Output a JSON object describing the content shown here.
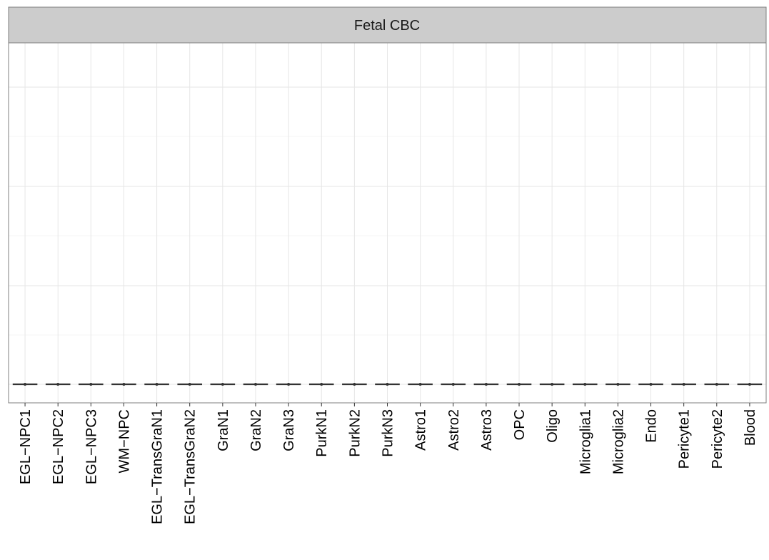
{
  "chart_data": {
    "type": "box",
    "panel_title": "Fetal CBC",
    "categories": [
      "EGL−NPC1",
      "EGL−NPC2",
      "EGL−NPC3",
      "WM−NPC",
      "EGL−TransGraN1",
      "EGL−TransGraN2",
      "GraN1",
      "GraN2",
      "GraN3",
      "PurkN1",
      "PurkN2",
      "PurkN3",
      "Astro1",
      "Astro2",
      "Astro3",
      "OPC",
      "Oligo",
      "Microglia1",
      "Microglia2",
      "Endo",
      "Pericyte1",
      "Pericyte2",
      "Blood"
    ],
    "values": [
      0,
      0,
      0,
      0,
      0,
      0,
      0,
      0,
      0,
      0,
      0,
      0,
      0,
      0,
      0,
      0,
      0,
      0,
      0,
      0,
      0,
      0,
      0
    ],
    "ylim": [
      0,
      1
    ],
    "grid": true,
    "xlabel": "",
    "ylabel": "",
    "colors": {
      "strip_fill": "#cccccc",
      "strip_border": "#7f7f7f",
      "panel_border": "#7f7f7f",
      "grid_major": "#e6e6e6",
      "grid_minor": "#f2f2f2",
      "box": "#333333"
    }
  }
}
